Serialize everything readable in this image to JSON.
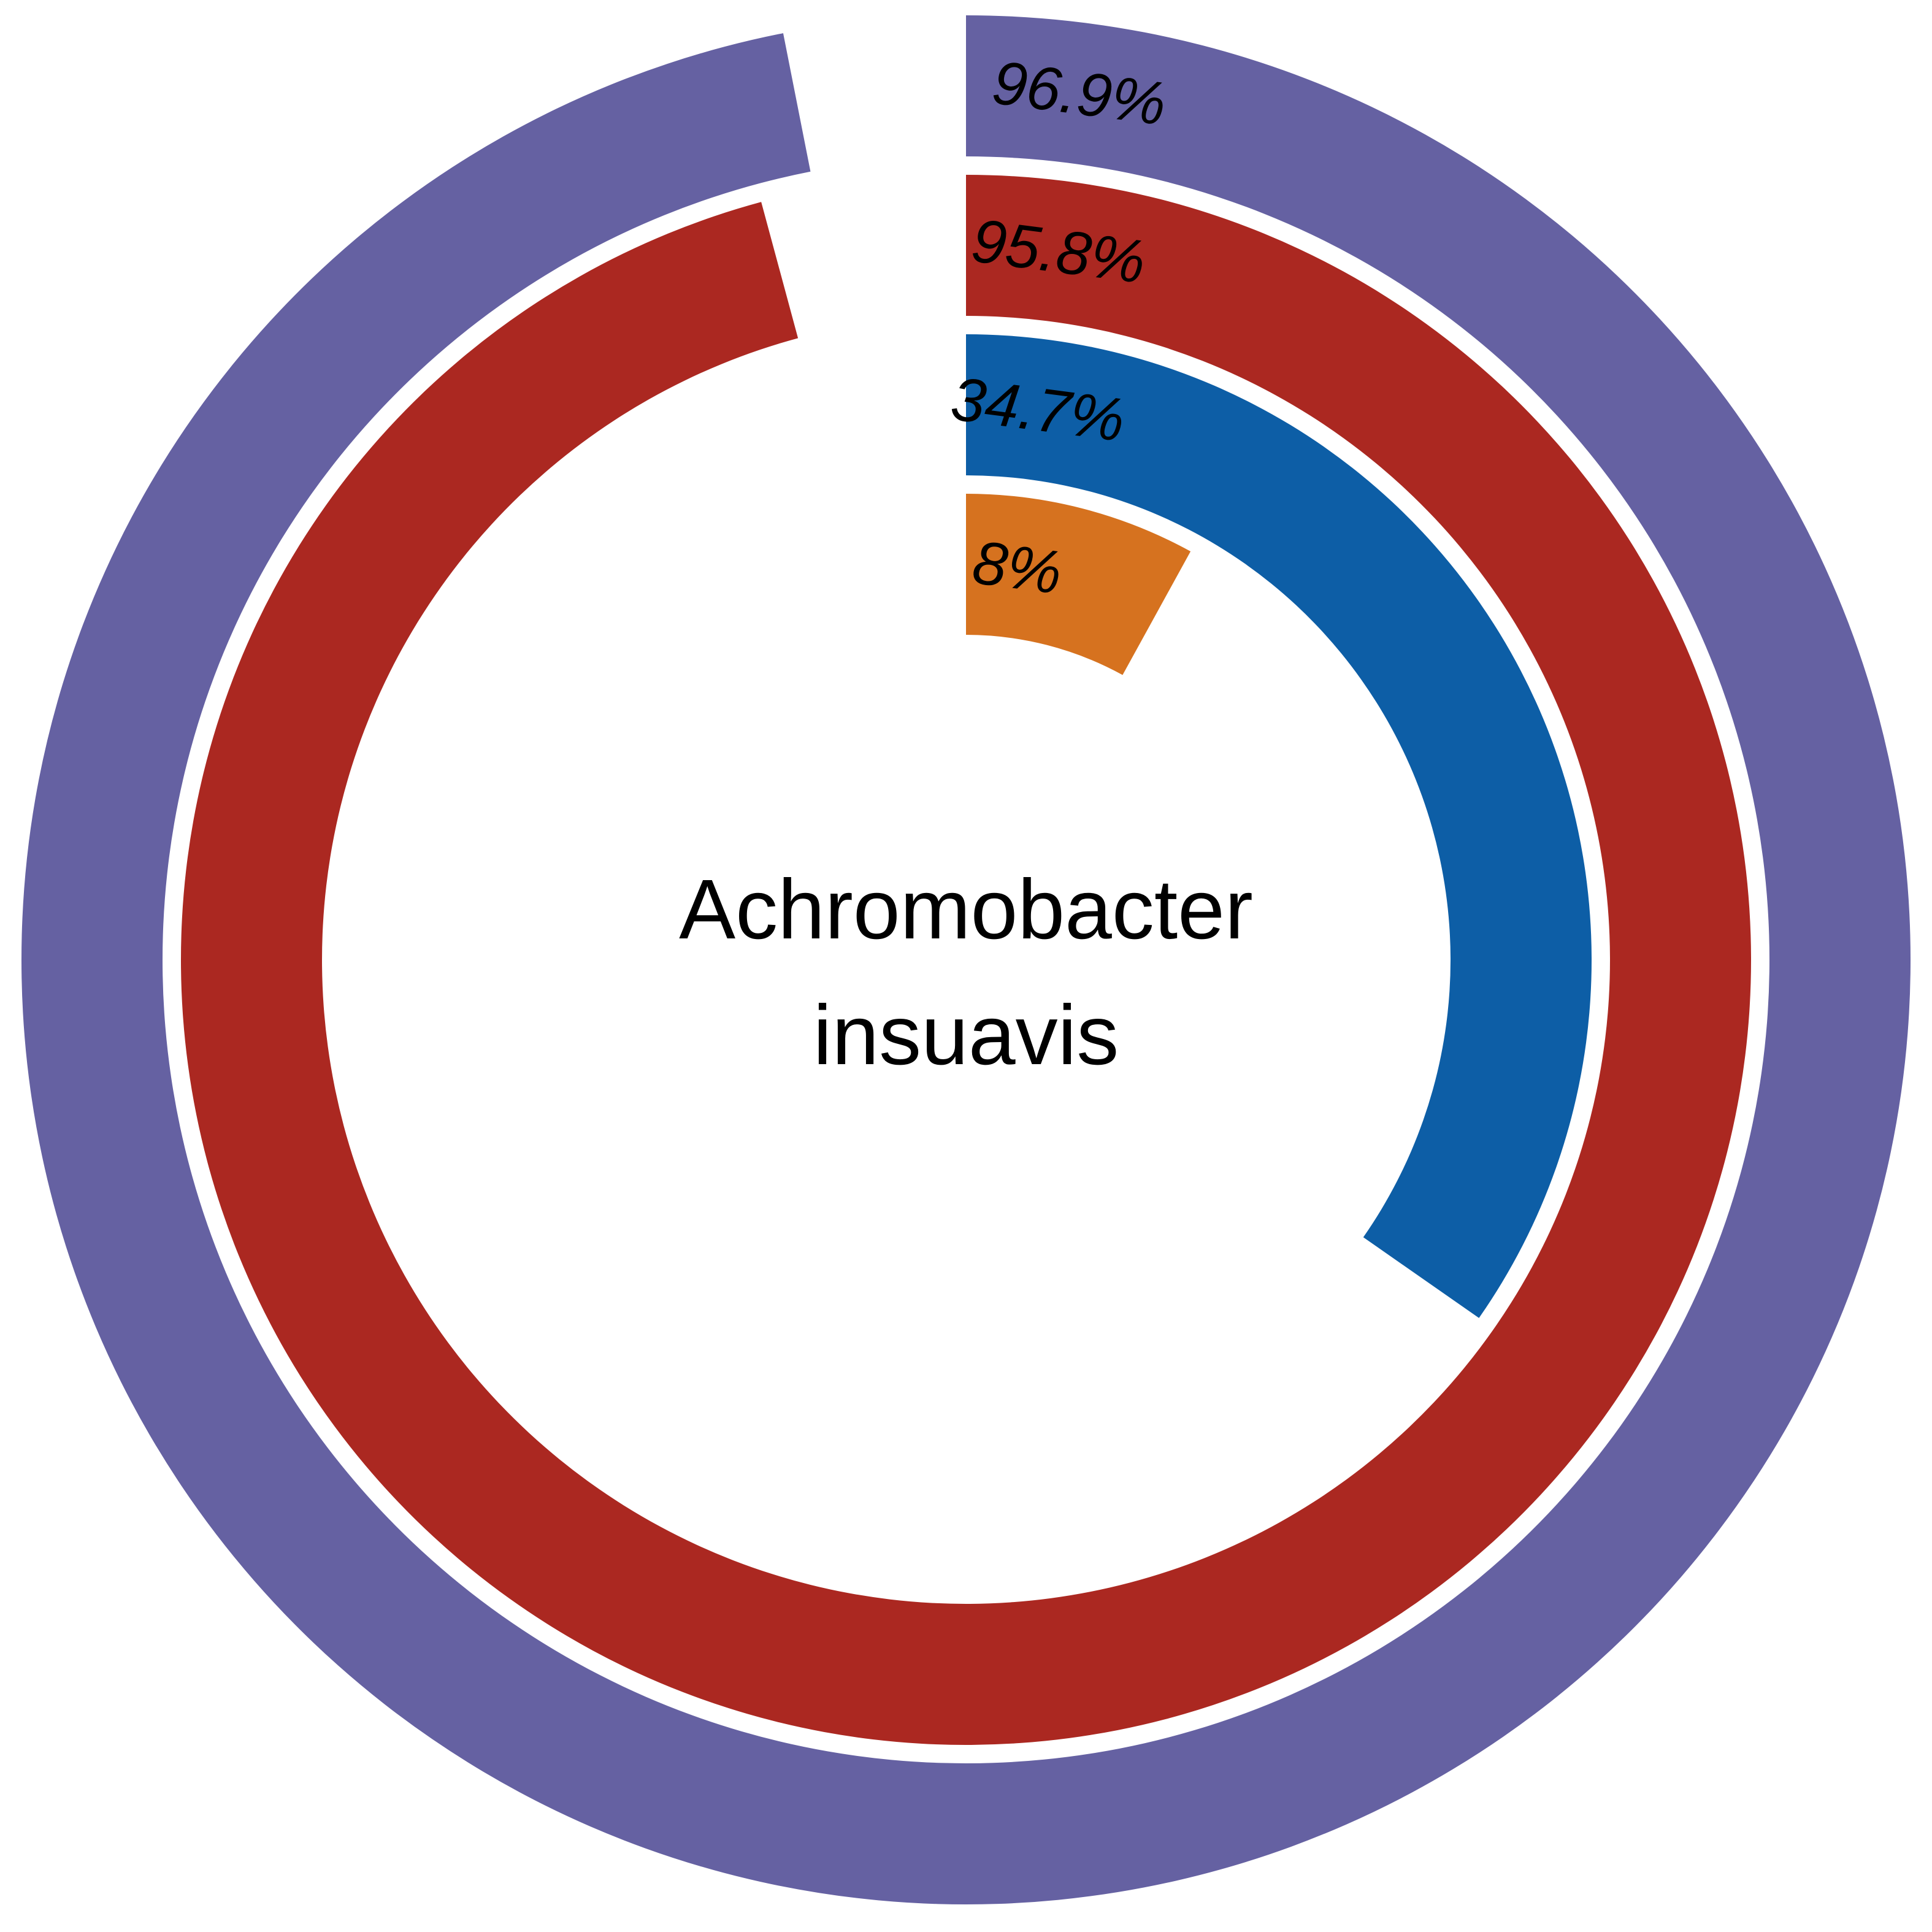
{
  "chart_data": {
    "type": "radial-bar",
    "center_label": [
      "Achromobacter",
      "insuavis"
    ],
    "max_value": 100,
    "rings": [
      {
        "value": 96.9,
        "label": "96.9%",
        "color": "#6561a2"
      },
      {
        "value": 95.8,
        "label": "95.8%",
        "color": "#ab2821"
      },
      {
        "value": 34.7,
        "label": "34.7%",
        "color": "#0d5ea6"
      },
      {
        "value": 8,
        "label": "8%",
        "color": "#d6721f"
      }
    ]
  }
}
